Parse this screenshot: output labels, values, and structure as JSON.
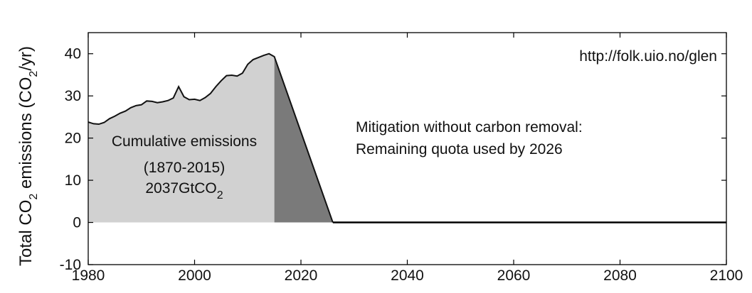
{
  "chart_data": {
    "type": "area",
    "xlim": [
      1980,
      2100
    ],
    "ylim": [
      -10,
      45
    ],
    "x_ticks": [
      "1980",
      "2000",
      "2020",
      "2040",
      "2060",
      "2080",
      "2100"
    ],
    "y_ticks": [
      "-10",
      "0",
      "10",
      "20",
      "30",
      "40"
    ],
    "ylabel": {
      "prefix": "Total CO",
      "sub1": "2",
      "middle": " emissions (CO",
      "sub2": "2",
      "suffix": "/yr)"
    },
    "url_text": "http://folk.uio.no/glen",
    "annotation_left": {
      "line1": "Cumulative emissions",
      "line2": "(1870-2015)",
      "line3_main": "2037GtCO",
      "line3_sub": "2"
    },
    "annotation_right": {
      "line1": "Mitigation without carbon removal:",
      "line2": "Remaining quota used by 2026"
    },
    "historical": {
      "x": [
        1980,
        1981,
        1982,
        1983,
        1984,
        1985,
        1986,
        1987,
        1988,
        1989,
        1990,
        1991,
        1992,
        1993,
        1994,
        1995,
        1996,
        1997,
        1998,
        1999,
        2000,
        2001,
        2002,
        2003,
        2004,
        2005,
        2006,
        2007,
        2008,
        2009,
        2010,
        2011,
        2012,
        2013,
        2014,
        2015
      ],
      "y": [
        23.8,
        23.4,
        23.3,
        23.7,
        24.6,
        25.2,
        25.9,
        26.4,
        27.2,
        27.7,
        27.9,
        28.8,
        28.7,
        28.4,
        28.6,
        28.9,
        29.5,
        32.2,
        29.8,
        29.1,
        29.2,
        28.9,
        29.6,
        30.6,
        32.2,
        33.6,
        34.8,
        34.9,
        34.7,
        35.4,
        37.5,
        38.6,
        39.1,
        39.6,
        40.0,
        39.3
      ]
    },
    "mitigation": {
      "x": [
        2015,
        2026
      ],
      "y": [
        39.3,
        0
      ]
    },
    "colors": {
      "historical_fill": "#d1d1d1",
      "mitigation_fill": "#7a7a7a",
      "line": "#111111",
      "zero_line": "#000000"
    }
  }
}
